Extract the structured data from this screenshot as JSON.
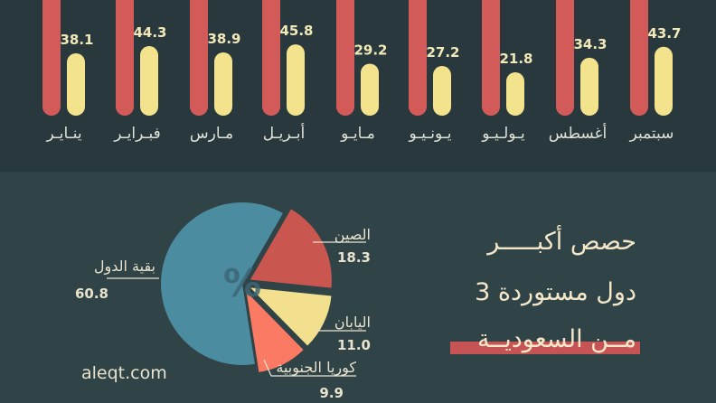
{
  "colors": {
    "accent_red": "#d25a58",
    "accent_yellow": "#f3e38c",
    "pie_blue": "#4b8ca0",
    "pie_red": "#c9574f",
    "pie_yellow": "#f2e08f",
    "pie_coral": "#fa7a64",
    "text_light": "#e8e3cf"
  },
  "headline": {
    "line1": "حصص أكبـــــر",
    "line2": "3 دول مستوردة",
    "line3": "مــن السعوديــة"
  },
  "source": "aleqt.com",
  "chart_data": [
    {
      "type": "bar",
      "categories": [
        "ينـايـر",
        "فبـرايـر",
        "مـارس",
        "أبـريـل",
        "مـايـو",
        "يـونـيـو",
        "يـولـيـو",
        "أغسطس",
        "سبتمبر"
      ],
      "series": [
        {
          "values": [
            null,
            null,
            null,
            null,
            null,
            null,
            null,
            null,
            null
          ],
          "color": "#d25a58"
        },
        {
          "values": [
            38.1,
            44.3,
            38.9,
            45.8,
            29.2,
            27.2,
            21.8,
            34.3,
            43.7
          ],
          "color": "#f3e38c"
        }
      ],
      "value_labels": [
        "38.1",
        "44.3",
        "38.9",
        "45.8",
        "29.2",
        "27.2",
        "21.8",
        "34.3",
        "43.7"
      ],
      "ylim": [
        0,
        60
      ],
      "grid": false
    },
    {
      "type": "pie",
      "center_label": "%",
      "slices": [
        {
          "label": "الصين",
          "value": 18.3,
          "value_label": "18.3",
          "color": "#c9574f"
        },
        {
          "label": "اليابان",
          "value": 11.0,
          "value_label": "11.0",
          "color": "#f2e08f"
        },
        {
          "label": "كوريا الجنوبية",
          "value": 9.9,
          "value_label": "9.9",
          "color": "#fa7a64"
        },
        {
          "label": "بقية الدول",
          "value": 60.8,
          "value_label": "60.8",
          "color": "#4b8ca0"
        }
      ]
    }
  ]
}
